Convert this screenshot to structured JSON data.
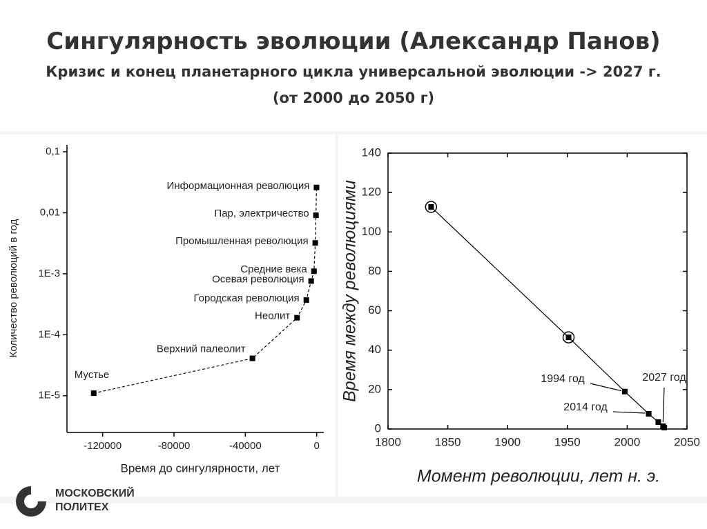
{
  "slide": {
    "title": "Сингулярность эволюции (Александр Панов)",
    "subtitle": "Кризис и конец планетарного цикла универсальной эволюции -> 2027 г.",
    "subtitle2": "(от 2000 до 2050 г)",
    "logo_line1": "МОСКОВСКИЙ",
    "logo_line2": "ПОЛИТЕХ"
  },
  "chart_data": [
    {
      "type": "line",
      "line_style": "dashed",
      "color": "#000000",
      "log_y": true,
      "x_label": "Время до сингулярности, лет",
      "y_label": "Количество революций в год",
      "x": [
        -125000,
        -36000,
        -11000,
        -5800,
        -3100,
        -1500,
        -800,
        -400,
        -100
      ],
      "values": [
        1.1e-05,
        4.1e-05,
        0.00019,
        0.00037,
        0.00076,
        0.0011,
        0.0032,
        0.0091,
        0.026
      ],
      "point_labels": [
        "Мустье",
        "Верхний палеолит",
        "Неолит",
        "Городская революция",
        "Осевая революция",
        "Средние века",
        "Промышленная революция",
        "Пар, электричество",
        "Информационная революция"
      ],
      "xlim": [
        -140000,
        4000
      ],
      "xticks": [
        -120000,
        -80000,
        -40000,
        0
      ],
      "ylim": [
        2.5e-06,
        0.13
      ],
      "yticks": [
        {
          "value": 0.1,
          "label": "0,1"
        },
        {
          "value": 0.01,
          "label": "0,01"
        },
        {
          "value": 0.001,
          "label": "1E-3"
        },
        {
          "value": 0.0001,
          "label": "1E-4"
        },
        {
          "value": 1e-05,
          "label": "1E-5"
        }
      ]
    },
    {
      "type": "line",
      "line_style": "solid",
      "color": "#000000",
      "log_y": false,
      "x_label": "Момент революции, лет н. э.",
      "y_label": "Время между революциями",
      "x": [
        1836,
        1951,
        1998,
        2018,
        2026,
        2030,
        2031
      ],
      "values": [
        112.7,
        46.5,
        19,
        7.7,
        3.5,
        1.4,
        0.7
      ],
      "highlighted": [
        0,
        1
      ],
      "annotations": [
        "1994 год",
        "2014 год",
        "2027 год"
      ],
      "xlim": [
        1800,
        2050
      ],
      "xticks": [
        1800,
        1850,
        1900,
        1950,
        2000,
        2050
      ],
      "ylim": [
        0,
        140
      ],
      "yticks": [
        0,
        20,
        40,
        60,
        80,
        100,
        120,
        140
      ]
    }
  ]
}
